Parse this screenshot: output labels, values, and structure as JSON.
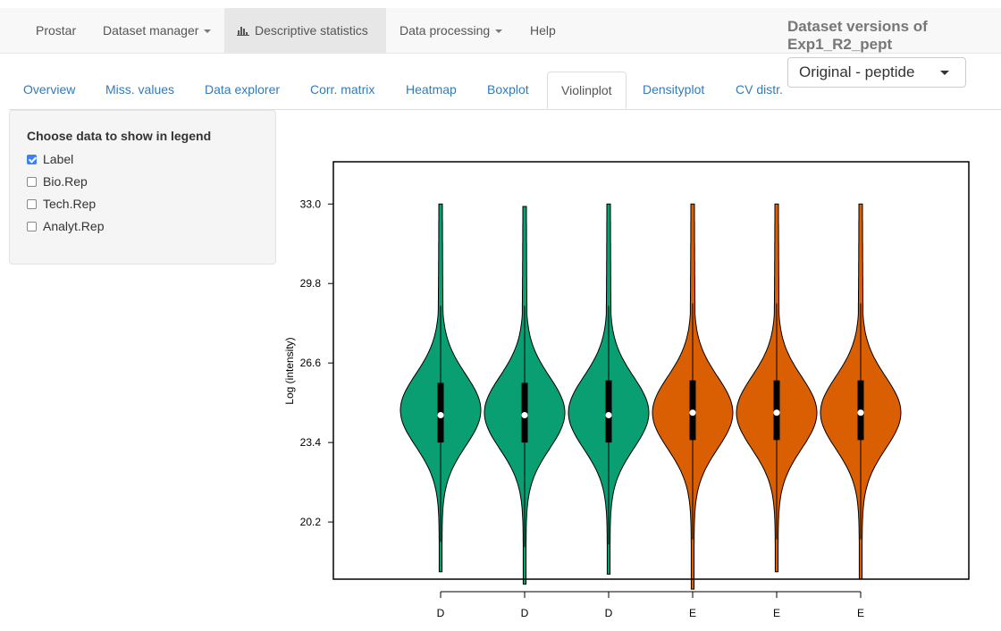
{
  "navbar": {
    "items": [
      {
        "label": "Prostar",
        "dropdown": false,
        "active": false
      },
      {
        "label": "Dataset manager",
        "dropdown": true,
        "active": false
      },
      {
        "label": "Descriptive statistics",
        "dropdown": false,
        "active": true,
        "icon": "bar-chart-icon"
      },
      {
        "label": "Data processing",
        "dropdown": true,
        "active": false
      },
      {
        "label": "Help",
        "dropdown": false,
        "active": false
      }
    ]
  },
  "dataset_versions": {
    "title": "Dataset versions of Exp1_R2_pept",
    "selected": "Original - peptide"
  },
  "tabs": [
    {
      "label": "Overview",
      "active": false
    },
    {
      "label": "Miss. values",
      "active": false
    },
    {
      "label": "Data explorer",
      "active": false
    },
    {
      "label": "Corr. matrix",
      "active": false
    },
    {
      "label": "Heatmap",
      "active": false
    },
    {
      "label": "Boxplot",
      "active": false
    },
    {
      "label": "Violinplot",
      "active": true
    },
    {
      "label": "Densityplot",
      "active": false
    },
    {
      "label": "CV distr.",
      "active": false
    }
  ],
  "legend_panel": {
    "title": "Choose data to show in legend",
    "options": [
      {
        "label": "Label",
        "checked": true
      },
      {
        "label": "Bio.Rep",
        "checked": false
      },
      {
        "label": "Tech.Rep",
        "checked": false
      },
      {
        "label": "Analyt.Rep",
        "checked": false
      }
    ]
  },
  "colors": {
    "condition_D": "#0a9e73",
    "condition_E": "#d95f02",
    "active_nav_bg": "#e7e7e7",
    "link": "#337ab7"
  },
  "chart_data": {
    "type": "violin",
    "title": "",
    "xlabel": "",
    "ylabel": "Log (intensity)",
    "ylim": [
      17.9,
      34.7
    ],
    "yticks": [
      33.0,
      29.8,
      26.6,
      23.4,
      20.2
    ],
    "categories": [
      "D",
      "D",
      "D",
      "E",
      "E",
      "E"
    ],
    "series": [
      {
        "label": "D",
        "min": 18.2,
        "max": 33.0,
        "q1": 23.4,
        "median": 24.5,
        "q3": 25.8,
        "whisker_low": 19.4,
        "whisker_high": 28.9,
        "mode": 24.7,
        "color": "#0a9e73"
      },
      {
        "label": "D",
        "min": 17.7,
        "max": 32.9,
        "q1": 23.4,
        "median": 24.5,
        "q3": 25.8,
        "whisker_low": 19.2,
        "whisker_high": 28.9,
        "mode": 24.6,
        "color": "#0a9e73"
      },
      {
        "label": "D",
        "min": 18.1,
        "max": 33.0,
        "q1": 23.4,
        "median": 24.5,
        "q3": 25.9,
        "whisker_low": 19.3,
        "whisker_high": 28.9,
        "mode": 24.6,
        "color": "#0a9e73"
      },
      {
        "label": "E",
        "min": 17.5,
        "max": 33.0,
        "q1": 23.5,
        "median": 24.6,
        "q3": 25.9,
        "whisker_low": 19.5,
        "whisker_high": 29.0,
        "mode": 24.6,
        "color": "#d95f02"
      },
      {
        "label": "E",
        "min": 18.2,
        "max": 33.0,
        "q1": 23.5,
        "median": 24.6,
        "q3": 25.9,
        "whisker_low": 19.5,
        "whisker_high": 29.0,
        "mode": 24.6,
        "color": "#d95f02"
      },
      {
        "label": "E",
        "min": 17.9,
        "max": 33.0,
        "q1": 23.5,
        "median": 24.6,
        "q3": 25.9,
        "whisker_low": 19.5,
        "whisker_high": 29.0,
        "mode": 24.6,
        "color": "#d95f02"
      }
    ]
  }
}
